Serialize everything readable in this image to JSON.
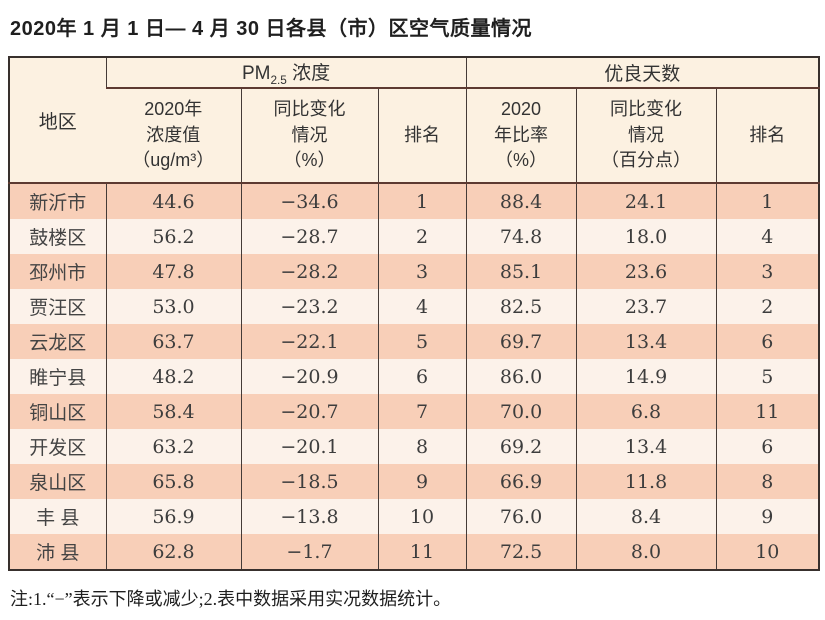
{
  "title": "2020年 1 月 1 日— 4 月 30 日各县（市）区空气质量情况",
  "table": {
    "header": {
      "region": "地区",
      "pm_group": {
        "prefix": "PM",
        "sub": "2.5",
        "suffix": " 浓度"
      },
      "good_days_group": "优良天数",
      "pm_value": "2020年\n浓度值\n（ug/m³）",
      "pm_change": "同比变化\n情况\n（%）",
      "pm_rank": "排名",
      "good_rate": "2020\n年比率\n（%）",
      "good_change": "同比变化\n情况\n（百分点）",
      "good_rank": "排名"
    },
    "rows": [
      {
        "region": "新沂市",
        "pm_value": "44.6",
        "pm_change": "−34.6",
        "pm_rank": "1",
        "good_rate": "88.4",
        "good_change": "24.1",
        "good_rank": "1"
      },
      {
        "region": "鼓楼区",
        "pm_value": "56.2",
        "pm_change": "−28.7",
        "pm_rank": "2",
        "good_rate": "74.8",
        "good_change": "18.0",
        "good_rank": "4"
      },
      {
        "region": "邳州市",
        "pm_value": "47.8",
        "pm_change": "−28.2",
        "pm_rank": "3",
        "good_rate": "85.1",
        "good_change": "23.6",
        "good_rank": "3"
      },
      {
        "region": "贾汪区",
        "pm_value": "53.0",
        "pm_change": "−23.2",
        "pm_rank": "4",
        "good_rate": "82.5",
        "good_change": "23.7",
        "good_rank": "2"
      },
      {
        "region": "云龙区",
        "pm_value": "63.7",
        "pm_change": "−22.1",
        "pm_rank": "5",
        "good_rate": "69.7",
        "good_change": "13.4",
        "good_rank": "6"
      },
      {
        "region": "睢宁县",
        "pm_value": "48.2",
        "pm_change": "−20.9",
        "pm_rank": "6",
        "good_rate": "86.0",
        "good_change": "14.9",
        "good_rank": "5"
      },
      {
        "region": "铜山区",
        "pm_value": "58.4",
        "pm_change": "−20.7",
        "pm_rank": "7",
        "good_rate": "70.0",
        "good_change": "6.8",
        "good_rank": "11"
      },
      {
        "region": "开发区",
        "pm_value": "63.2",
        "pm_change": "−20.1",
        "pm_rank": "8",
        "good_rate": "69.2",
        "good_change": "13.4",
        "good_rank": "6"
      },
      {
        "region": "泉山区",
        "pm_value": "65.8",
        "pm_change": "−18.5",
        "pm_rank": "9",
        "good_rate": "66.9",
        "good_change": "11.8",
        "good_rank": "8"
      },
      {
        "region": "丰 县",
        "pm_value": "56.9",
        "pm_change": "−13.8",
        "pm_rank": "10",
        "good_rate": "76.0",
        "good_change": "8.4",
        "good_rank": "9"
      },
      {
        "region": "沛 县",
        "pm_value": "62.8",
        "pm_change": "−1.7",
        "pm_rank": "11",
        "good_rate": "72.5",
        "good_change": "8.0",
        "good_rank": "10"
      }
    ]
  },
  "note": "注:1.“−”表示下降或减少;2.表中数据采用实况数据统计。",
  "colors": {
    "row_salmon": "#f8cfb8",
    "row_light": "#fcf2ea",
    "header_bg": "#fcf1e1",
    "outer_border": "#38302d",
    "inner_line": "#453b37",
    "header_rule": "#5d3a31",
    "text": "#3d3d3d"
  }
}
